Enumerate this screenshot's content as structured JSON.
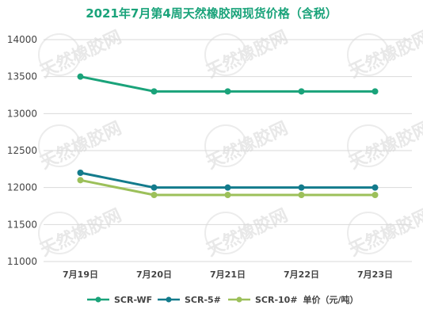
{
  "chart_data": {
    "type": "line",
    "title": "2021年7月第4周天然橡胶网现货价格（含税）",
    "categories": [
      "7月19日",
      "7月20日",
      "7月21日",
      "7月22日",
      "7月23日"
    ],
    "ylim": [
      11000,
      14000
    ],
    "yticks": [
      11000,
      11500,
      12000,
      12500,
      13000,
      13500,
      14000
    ],
    "grid": true,
    "legend_position": "bottom",
    "unit_label": "单价（元/吨）",
    "series": [
      {
        "name": "SCR-WF",
        "color": "#1aa37a",
        "values": [
          13500,
          13300,
          13300,
          13300,
          13300
        ]
      },
      {
        "name": "SCR-5#",
        "color": "#137b8c",
        "values": [
          12200,
          12000,
          12000,
          12000,
          12000
        ]
      },
      {
        "name": "SCR-10#",
        "color": "#9cc05a",
        "values": [
          12100,
          11900,
          11900,
          11900,
          11900
        ]
      }
    ]
  },
  "watermark": {
    "text": "天然橡胶网"
  }
}
